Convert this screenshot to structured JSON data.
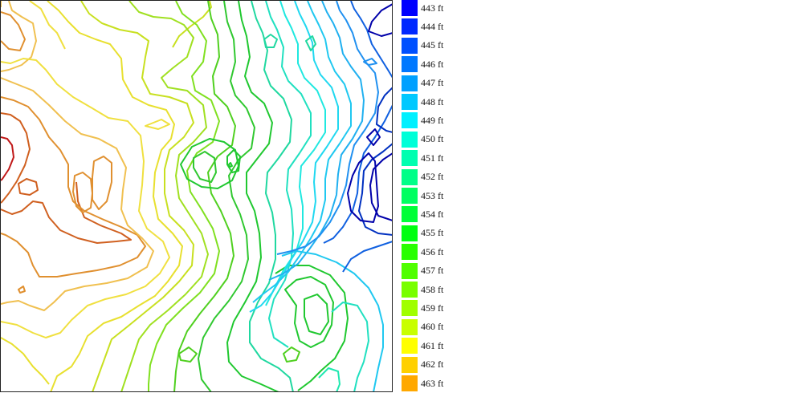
{
  "map": {
    "kind": "contour elevation map"
  },
  "legend": {
    "items": [
      {
        "label": "443 ft",
        "color": "#0000ff"
      },
      {
        "label": "444 ft",
        "color": "#0028ff"
      },
      {
        "label": "445 ft",
        "color": "#0050ff"
      },
      {
        "label": "446 ft",
        "color": "#0078ff"
      },
      {
        "label": "447 ft",
        "color": "#00a0ff"
      },
      {
        "label": "448 ft",
        "color": "#00c8ff"
      },
      {
        "label": "449 ft",
        "color": "#00f0ff"
      },
      {
        "label": "450 ft",
        "color": "#00ffd8"
      },
      {
        "label": "451 ft",
        "color": "#00ffb0"
      },
      {
        "label": "452 ft",
        "color": "#00ff88"
      },
      {
        "label": "453 ft",
        "color": "#00ff60"
      },
      {
        "label": "454 ft",
        "color": "#00ff38"
      },
      {
        "label": "455 ft",
        "color": "#00ff10"
      },
      {
        "label": "456 ft",
        "color": "#28ff00"
      },
      {
        "label": "457 ft",
        "color": "#50ff00"
      },
      {
        "label": "458 ft",
        "color": "#78ff00"
      },
      {
        "label": "459 ft",
        "color": "#a0ff00"
      },
      {
        "label": "460 ft",
        "color": "#c8ff00"
      },
      {
        "label": "461 ft",
        "color": "#ffff00"
      },
      {
        "label": "462 ft",
        "color": "#ffd000"
      },
      {
        "label": "463 ft",
        "color": "#ffa800"
      }
    ]
  },
  "contour_colors": {
    "dark_blue": "#0000aa",
    "blue": "#1040e0",
    "mid_blue": "#2090f0",
    "cyan": "#20d8f0",
    "teal": "#20e0c0",
    "green": "#20c830",
    "lime": "#80e020",
    "yellow_green": "#c8e020",
    "yellow": "#f0e040",
    "light_orange": "#f0c050",
    "orange": "#e09030",
    "dark_orange": "#d06020",
    "red": "#c01818"
  }
}
